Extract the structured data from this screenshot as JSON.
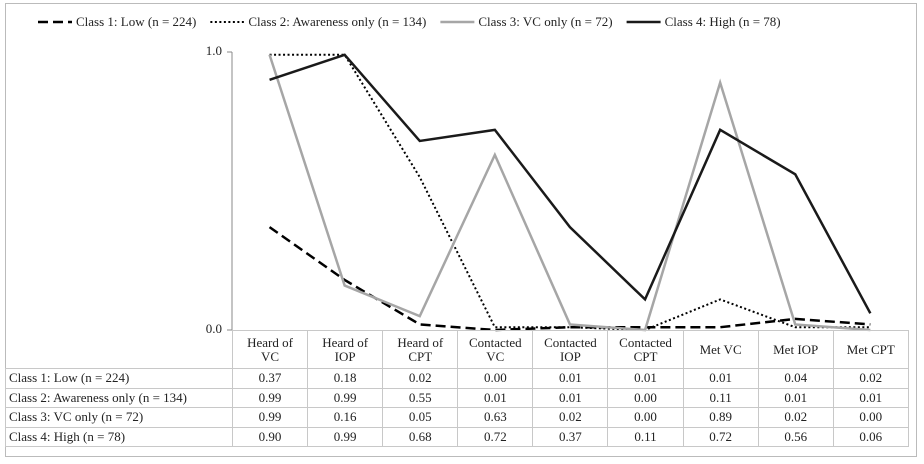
{
  "chart_data": {
    "type": "line",
    "categories": [
      "Heard of VC",
      "Heard of IOP",
      "Heard of CPT",
      "Contacted VC",
      "Contacted IOP",
      "Contacted CPT",
      "Met VC",
      "Met IOP",
      "Met CPT"
    ],
    "series": [
      {
        "name": "Class 1: Low (n = 224)",
        "color": "#000000",
        "style": "dashed",
        "values": [
          0.37,
          0.18,
          0.02,
          0,
          0.01,
          0.01,
          0.01,
          0.04,
          0.02
        ],
        "value_labels": [
          "0.37",
          "0.18",
          "0.02",
          "0.00",
          "0.01",
          "0.01",
          "0.01",
          "0.04",
          "0.02"
        ]
      },
      {
        "name": "Class 2: Awareness only (n = 134)",
        "color": "#000000",
        "style": "dotted",
        "values": [
          0.99,
          0.99,
          0.55,
          0.01,
          0.01,
          0,
          0.11,
          0.01,
          0.01
        ],
        "value_labels": [
          "0.99",
          "0.99",
          "0.55",
          "0.01",
          "0.01",
          "0.00",
          "0.11",
          "0.01",
          "0.01"
        ]
      },
      {
        "name": "Class 3: VC only (n = 72)",
        "color": "#a6a6a6",
        "style": "solid",
        "values": [
          0.99,
          0.16,
          0.05,
          0.63,
          0.02,
          0,
          0.89,
          0.02,
          0
        ],
        "value_labels": [
          "0.99",
          "0.16",
          "0.05",
          "0.63",
          "0.02",
          "0.00",
          "0.89",
          "0.02",
          "0.00"
        ]
      },
      {
        "name": "Class 4: High (n = 78)",
        "color": "#1a1a1a",
        "style": "solid",
        "values": [
          0.9,
          0.99,
          0.68,
          0.72,
          0.37,
          0.11,
          0.72,
          0.56,
          0.06
        ],
        "value_labels": [
          "0.90",
          "0.99",
          "0.68",
          "0.72",
          "0.37",
          "0.11",
          "0.72",
          "0.56",
          "0.06"
        ]
      }
    ],
    "ylim": [
      0,
      1
    ],
    "yticks": [
      {
        "value": 0,
        "label": "0.0"
      },
      {
        "value": 1,
        "label": "1.0"
      }
    ],
    "legend": "top"
  }
}
